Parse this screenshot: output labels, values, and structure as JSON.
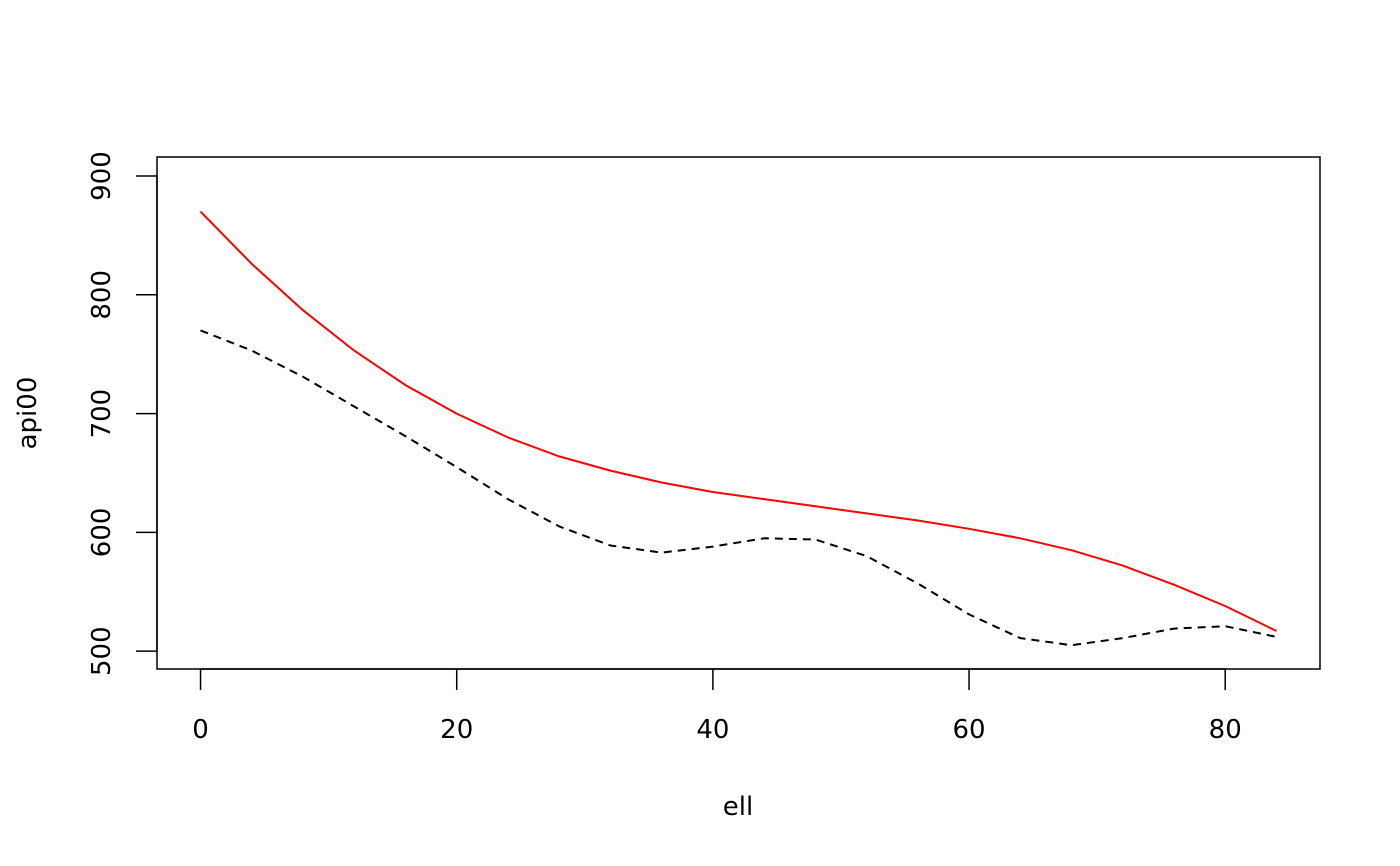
{
  "chart_data": {
    "type": "line",
    "title": "",
    "xlabel": "ell",
    "ylabel": "api00",
    "xlim": [
      -3.4,
      87.4
    ],
    "ylim": [
      485,
      916
    ],
    "x_ticks": [
      0,
      20,
      40,
      60,
      80
    ],
    "y_ticks": [
      500,
      600,
      700,
      800,
      900
    ],
    "grid": false,
    "legend": "none",
    "series": [
      {
        "color": "#ff0000",
        "style": "solid",
        "x": [
          0,
          4,
          8,
          12,
          16,
          20,
          24,
          28,
          32,
          36,
          40,
          44,
          48,
          52,
          56,
          60,
          64,
          68,
          72,
          76,
          80,
          84
        ],
        "y": [
          870,
          826,
          787,
          753,
          724,
          700,
          680,
          664,
          652,
          642,
          634,
          628,
          622,
          616,
          610,
          603,
          595,
          585,
          572,
          556,
          538,
          517
        ]
      },
      {
        "color": "#000000",
        "style": "dashed",
        "x": [
          0,
          4,
          8,
          12,
          16,
          20,
          24,
          28,
          32,
          36,
          40,
          44,
          48,
          52,
          56,
          60,
          64,
          68,
          72,
          76,
          80,
          84
        ],
        "y": [
          770,
          753,
          731,
          706,
          681,
          655,
          628,
          605,
          589,
          583,
          588,
          595,
          594,
          580,
          557,
          531,
          511,
          505,
          511,
          519,
          521,
          512
        ]
      }
    ]
  }
}
